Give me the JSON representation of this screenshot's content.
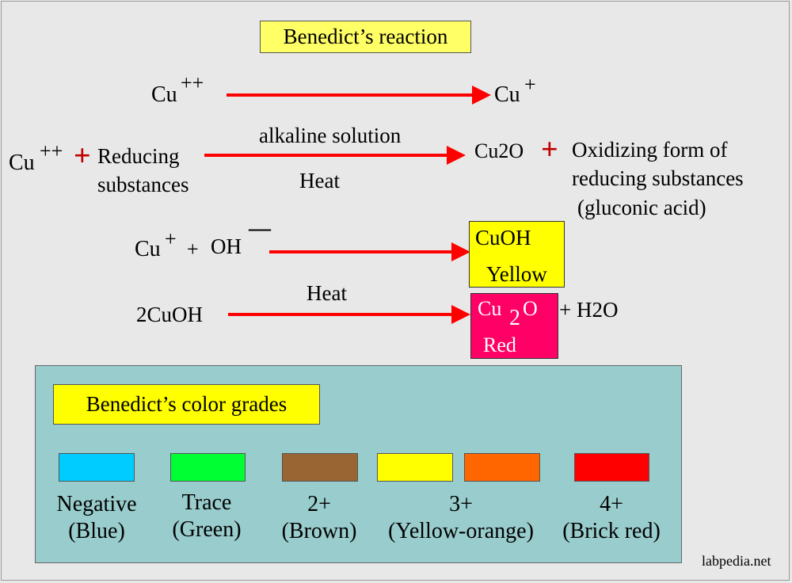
{
  "title": "Benedict’s reaction",
  "reactions": {
    "r1": {
      "reactant": "Cu",
      "reactant_charge": "++",
      "product": "Cu",
      "product_charge": "+"
    },
    "r2": {
      "reactant": "Cu",
      "reactant_charge": "++",
      "plus": "+",
      "reagent_line1": "Reducing",
      "reagent_line2": "substances",
      "condition_top": "alkaline solution",
      "condition_bottom": "Heat",
      "product": "Cu2O",
      "plus2": "+",
      "byproduct_line1": "Oxidizing form of",
      "byproduct_line2": "reducing substances",
      "byproduct_line3": "(gluconic acid)"
    },
    "r3": {
      "reactant": "Cu",
      "reactant_charge": "+",
      "plus": "+",
      "reagent": "OH",
      "reagent_charge": "—",
      "product": "CuOH",
      "product_color": "Yellow"
    },
    "r4": {
      "reactant": "2CuOH",
      "condition": "Heat",
      "product_cu": "Cu",
      "product_sub": "2",
      "product_o": "O",
      "product_color": "Red",
      "byproduct": "+ H2O"
    }
  },
  "grades": {
    "title": "Benedict’s color grades",
    "items": [
      {
        "label_line1": "Negative",
        "label_line2": "(Blue)",
        "colors": [
          "#00ccff"
        ]
      },
      {
        "label_line1": "Trace",
        "label_line2": "(Green)",
        "colors": [
          "#00ff33"
        ]
      },
      {
        "label_line1": "2+",
        "label_line2": "(Brown)",
        "colors": [
          "#996633"
        ]
      },
      {
        "label_line1": "3+",
        "label_line2": "(Yellow-orange)",
        "colors": [
          "#ffff00",
          "#ff6600"
        ]
      },
      {
        "label_line1": "4+",
        "label_line2": "(Brick red)",
        "colors": [
          "#ff0000"
        ]
      }
    ]
  },
  "colors": {
    "arrow": "#ff0000",
    "title_bg": "#ffff66",
    "panel_bg": "#99cccc",
    "cuoh_bg": "#ffff00",
    "cu2o_bg": "#ff0066"
  },
  "watermark": "labpedia.net"
}
